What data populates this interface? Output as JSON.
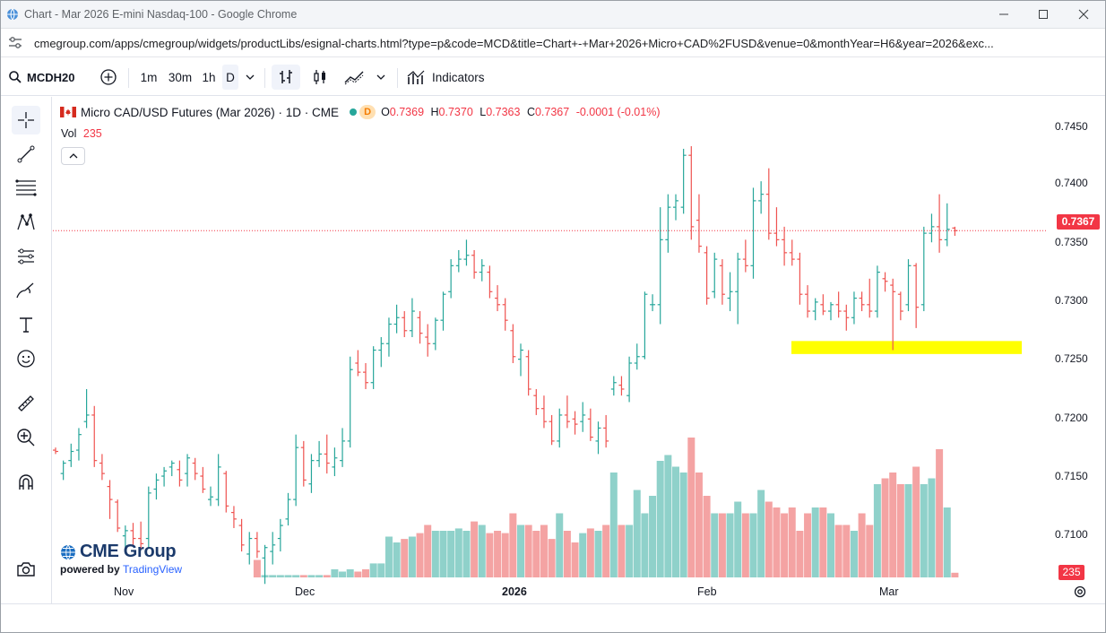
{
  "browser": {
    "title": "Chart - Mar 2026 E-mini Nasdaq-100 - Google Chrome",
    "url": "cmegroup.com/apps/cmegroup/widgets/productLibs/esignal-charts.html?type=p&code=MCD&title=Chart+-+Mar+2026+Micro+CAD%2FUSD&venue=0&monthYear=H6&year=2026&exc..."
  },
  "toolbar": {
    "symbol": "MCDH20",
    "intervals": [
      "1m",
      "30m",
      "1h",
      "D"
    ],
    "active_interval": "D",
    "indicators_label": "Indicators"
  },
  "legend": {
    "instrument": "Micro CAD/USD Futures (Mar 2026) · 1D · CME",
    "market_status": "D",
    "o_label": "O",
    "o_value": "0.7369",
    "h_label": "H",
    "h_value": "0.7370",
    "l_label": "L",
    "l_value": "0.7363",
    "c_label": "C",
    "c_value": "0.7367",
    "change": "-0.0001 (-0.01%)",
    "vol_label": "Vol",
    "vol_value": "235"
  },
  "axis": {
    "price_ticks": [
      "0.7450",
      "0.7400",
      "0.7350",
      "0.7300",
      "0.7250",
      "0.7200",
      "0.7150",
      "0.7100"
    ],
    "last_price_tag": "0.7367",
    "volume_tag": "235",
    "time_labels": [
      "Nov",
      "Dec",
      "2026",
      "Feb",
      "Mar"
    ]
  },
  "branding": {
    "logo_text": "CME Group",
    "powered_prefix": "powered by",
    "powered_brand": "TradingView"
  },
  "colors": {
    "up": "#26a69a",
    "down": "#ef5350",
    "vol_up": "#8fd1ca",
    "vol_down": "#f4a3a3",
    "last_price": "#f23645",
    "highlight_zone": "#ffff00"
  },
  "chart_data": {
    "type": "ohlc",
    "title": "Micro CAD/USD Futures (Mar 2026) · 1D · CME",
    "ylim": [
      0.708,
      0.747
    ],
    "last_price": 0.7367,
    "highlight_zone": {
      "from": 0.7272,
      "to": 0.7282
    },
    "series": [
      {
        "o": 0.7198,
        "h": 0.72,
        "l": 0.7195,
        "c": 0.7197,
        "v": 0
      },
      {
        "o": 0.718,
        "h": 0.719,
        "l": 0.7175,
        "c": 0.7188,
        "v": 0
      },
      {
        "o": 0.719,
        "h": 0.7203,
        "l": 0.7185,
        "c": 0.7197,
        "v": 0
      },
      {
        "o": 0.7198,
        "h": 0.7215,
        "l": 0.719,
        "c": 0.721,
        "v": 0
      },
      {
        "o": 0.722,
        "h": 0.7245,
        "l": 0.7215,
        "c": 0.7225,
        "v": 0
      },
      {
        "o": 0.7225,
        "h": 0.7232,
        "l": 0.7185,
        "c": 0.719,
        "v": 0
      },
      {
        "o": 0.7188,
        "h": 0.7195,
        "l": 0.7175,
        "c": 0.718,
        "v": 0
      },
      {
        "o": 0.717,
        "h": 0.7175,
        "l": 0.7145,
        "c": 0.716,
        "v": 0
      },
      {
        "o": 0.7158,
        "h": 0.716,
        "l": 0.7135,
        "c": 0.7138,
        "v": 0
      },
      {
        "o": 0.7132,
        "h": 0.714,
        "l": 0.712,
        "c": 0.7136,
        "v": 0
      },
      {
        "o": 0.7136,
        "h": 0.7142,
        "l": 0.7125,
        "c": 0.713,
        "v": 0
      },
      {
        "o": 0.713,
        "h": 0.7143,
        "l": 0.7122,
        "c": 0.7126,
        "v": 0
      },
      {
        "o": 0.713,
        "h": 0.717,
        "l": 0.7122,
        "c": 0.7165,
        "v": 0
      },
      {
        "o": 0.7168,
        "h": 0.718,
        "l": 0.716,
        "c": 0.7175,
        "v": 0
      },
      {
        "o": 0.7178,
        "h": 0.7185,
        "l": 0.717,
        "c": 0.7182,
        "v": 0
      },
      {
        "o": 0.7185,
        "h": 0.719,
        "l": 0.7178,
        "c": 0.7188,
        "v": 0
      },
      {
        "o": 0.7183,
        "h": 0.719,
        "l": 0.717,
        "c": 0.7175,
        "v": 0
      },
      {
        "o": 0.718,
        "h": 0.7195,
        "l": 0.717,
        "c": 0.7192,
        "v": 0
      },
      {
        "o": 0.7188,
        "h": 0.7192,
        "l": 0.7175,
        "c": 0.718,
        "v": 0
      },
      {
        "o": 0.7178,
        "h": 0.7185,
        "l": 0.7165,
        "c": 0.7168,
        "v": 0
      },
      {
        "o": 0.716,
        "h": 0.717,
        "l": 0.7155,
        "c": 0.7162,
        "v": 0
      },
      {
        "o": 0.716,
        "h": 0.7195,
        "l": 0.7155,
        "c": 0.7185,
        "v": 0
      },
      {
        "o": 0.718,
        "h": 0.7182,
        "l": 0.715,
        "c": 0.7155,
        "v": 0
      },
      {
        "o": 0.715,
        "h": 0.7155,
        "l": 0.7138,
        "c": 0.7145,
        "v": 0
      },
      {
        "o": 0.714,
        "h": 0.7145,
        "l": 0.712,
        "c": 0.7125,
        "v": 0
      },
      {
        "o": 0.7118,
        "h": 0.7135,
        "l": 0.711,
        "c": 0.713,
        "v": 0
      },
      {
        "o": 0.713,
        "h": 0.7135,
        "l": 0.7115,
        "c": 0.712,
        "v": 0.15
      },
      {
        "o": 0.7115,
        "h": 0.7125,
        "l": 0.7095,
        "c": 0.7123,
        "v": 0.02
      },
      {
        "o": 0.712,
        "h": 0.7135,
        "l": 0.711,
        "c": 0.7125,
        "v": 0.02
      },
      {
        "o": 0.713,
        "h": 0.7145,
        "l": 0.712,
        "c": 0.714,
        "v": 0.02
      },
      {
        "o": 0.7145,
        "h": 0.7165,
        "l": 0.714,
        "c": 0.716,
        "v": 0.02
      },
      {
        "o": 0.716,
        "h": 0.721,
        "l": 0.7155,
        "c": 0.72,
        "v": 0.02
      },
      {
        "o": 0.72,
        "h": 0.7205,
        "l": 0.717,
        "c": 0.7175,
        "v": 0.02
      },
      {
        "o": 0.7172,
        "h": 0.7195,
        "l": 0.7165,
        "c": 0.719,
        "v": 0.02
      },
      {
        "o": 0.719,
        "h": 0.7205,
        "l": 0.7185,
        "c": 0.7195,
        "v": 0.02
      },
      {
        "o": 0.7195,
        "h": 0.721,
        "l": 0.718,
        "c": 0.7188,
        "v": 0.02
      },
      {
        "o": 0.7185,
        "h": 0.72,
        "l": 0.7178,
        "c": 0.7192,
        "v": 0.07
      },
      {
        "o": 0.719,
        "h": 0.7215,
        "l": 0.7185,
        "c": 0.7205,
        "v": 0.05
      },
      {
        "o": 0.7205,
        "h": 0.727,
        "l": 0.72,
        "c": 0.726,
        "v": 0.07
      },
      {
        "o": 0.7265,
        "h": 0.7275,
        "l": 0.7255,
        "c": 0.7258,
        "v": 0.05
      },
      {
        "o": 0.7258,
        "h": 0.7265,
        "l": 0.7245,
        "c": 0.725,
        "v": 0.07
      },
      {
        "o": 0.725,
        "h": 0.7278,
        "l": 0.7245,
        "c": 0.7275,
        "v": 0.12
      },
      {
        "o": 0.7275,
        "h": 0.7285,
        "l": 0.7262,
        "c": 0.728,
        "v": 0.12
      },
      {
        "o": 0.728,
        "h": 0.73,
        "l": 0.727,
        "c": 0.7295,
        "v": 0.35
      },
      {
        "o": 0.7295,
        "h": 0.731,
        "l": 0.7288,
        "c": 0.73,
        "v": 0.3
      },
      {
        "o": 0.73,
        "h": 0.7305,
        "l": 0.7285,
        "c": 0.729,
        "v": 0.33
      },
      {
        "o": 0.729,
        "h": 0.7315,
        "l": 0.7285,
        "c": 0.7305,
        "v": 0.35
      },
      {
        "o": 0.73,
        "h": 0.7305,
        "l": 0.728,
        "c": 0.7288,
        "v": 0.38
      },
      {
        "o": 0.7285,
        "h": 0.7295,
        "l": 0.727,
        "c": 0.728,
        "v": 0.45
      },
      {
        "o": 0.728,
        "h": 0.73,
        "l": 0.7275,
        "c": 0.7298,
        "v": 0.4
      },
      {
        "o": 0.7298,
        "h": 0.732,
        "l": 0.729,
        "c": 0.7318,
        "v": 0.4
      },
      {
        "o": 0.732,
        "h": 0.7345,
        "l": 0.7315,
        "c": 0.734,
        "v": 0.4
      },
      {
        "o": 0.734,
        "h": 0.7352,
        "l": 0.7335,
        "c": 0.7345,
        "v": 0.42
      },
      {
        "o": 0.7345,
        "h": 0.736,
        "l": 0.734,
        "c": 0.7348,
        "v": 0.4
      },
      {
        "o": 0.7348,
        "h": 0.7352,
        "l": 0.733,
        "c": 0.7335,
        "v": 0.48
      },
      {
        "o": 0.7335,
        "h": 0.7345,
        "l": 0.7328,
        "c": 0.734,
        "v": 0.45
      },
      {
        "o": 0.7335,
        "h": 0.734,
        "l": 0.7315,
        "c": 0.732,
        "v": 0.38
      },
      {
        "o": 0.7315,
        "h": 0.7325,
        "l": 0.7305,
        "c": 0.731,
        "v": 0.4
      },
      {
        "o": 0.731,
        "h": 0.7315,
        "l": 0.729,
        "c": 0.7298,
        "v": 0.38
      },
      {
        "o": 0.729,
        "h": 0.7295,
        "l": 0.7265,
        "c": 0.727,
        "v": 0.55
      },
      {
        "o": 0.7268,
        "h": 0.728,
        "l": 0.7255,
        "c": 0.7275,
        "v": 0.45
      },
      {
        "o": 0.727,
        "h": 0.7275,
        "l": 0.724,
        "c": 0.7245,
        "v": 0.45
      },
      {
        "o": 0.724,
        "h": 0.7245,
        "l": 0.7225,
        "c": 0.723,
        "v": 0.4
      },
      {
        "o": 0.723,
        "h": 0.724,
        "l": 0.7215,
        "c": 0.722,
        "v": 0.45
      },
      {
        "o": 0.722,
        "h": 0.7225,
        "l": 0.7202,
        "c": 0.7205,
        "v": 0.33
      },
      {
        "o": 0.7205,
        "h": 0.723,
        "l": 0.72,
        "c": 0.7225,
        "v": 0.55
      },
      {
        "o": 0.7225,
        "h": 0.724,
        "l": 0.7215,
        "c": 0.722,
        "v": 0.4
      },
      {
        "o": 0.7222,
        "h": 0.7228,
        "l": 0.721,
        "c": 0.7218,
        "v": 0.3
      },
      {
        "o": 0.722,
        "h": 0.7235,
        "l": 0.7212,
        "c": 0.7225,
        "v": 0.38
      },
      {
        "o": 0.7222,
        "h": 0.723,
        "l": 0.7205,
        "c": 0.7208,
        "v": 0.42
      },
      {
        "o": 0.7205,
        "h": 0.722,
        "l": 0.7195,
        "c": 0.7215,
        "v": 0.4
      },
      {
        "o": 0.7215,
        "h": 0.7225,
        "l": 0.72,
        "c": 0.7205,
        "v": 0.45
      },
      {
        "o": 0.7245,
        "h": 0.7255,
        "l": 0.724,
        "c": 0.725,
        "v": 0.9
      },
      {
        "o": 0.7248,
        "h": 0.7255,
        "l": 0.724,
        "c": 0.7245,
        "v": 0.45
      },
      {
        "o": 0.724,
        "h": 0.727,
        "l": 0.7235,
        "c": 0.7265,
        "v": 0.45
      },
      {
        "o": 0.7265,
        "h": 0.728,
        "l": 0.726,
        "c": 0.727,
        "v": 0.75
      },
      {
        "o": 0.727,
        "h": 0.732,
        "l": 0.7268,
        "c": 0.7318,
        "v": 0.55
      },
      {
        "o": 0.731,
        "h": 0.7318,
        "l": 0.7305,
        "c": 0.731,
        "v": 0.7
      },
      {
        "o": 0.731,
        "h": 0.7385,
        "l": 0.7295,
        "c": 0.736,
        "v": 1.0
      },
      {
        "o": 0.736,
        "h": 0.7395,
        "l": 0.735,
        "c": 0.7385,
        "v": 1.05
      },
      {
        "o": 0.7385,
        "h": 0.7395,
        "l": 0.7375,
        "c": 0.739,
        "v": 0.95
      },
      {
        "o": 0.7385,
        "h": 0.743,
        "l": 0.738,
        "c": 0.7425,
        "v": 0.9
      },
      {
        "o": 0.7425,
        "h": 0.7432,
        "l": 0.736,
        "c": 0.737,
        "v": 1.2
      },
      {
        "o": 0.7375,
        "h": 0.7395,
        "l": 0.735,
        "c": 0.7355,
        "v": 0.9
      },
      {
        "o": 0.735,
        "h": 0.7355,
        "l": 0.731,
        "c": 0.7315,
        "v": 0.7
      },
      {
        "o": 0.732,
        "h": 0.735,
        "l": 0.7315,
        "c": 0.7345,
        "v": 0.55
      },
      {
        "o": 0.734,
        "h": 0.7345,
        "l": 0.731,
        "c": 0.7318,
        "v": 0.55
      },
      {
        "o": 0.7315,
        "h": 0.7335,
        "l": 0.7305,
        "c": 0.732,
        "v": 0.55
      },
      {
        "o": 0.732,
        "h": 0.735,
        "l": 0.7295,
        "c": 0.7345,
        "v": 0.65
      },
      {
        "o": 0.7345,
        "h": 0.736,
        "l": 0.7335,
        "c": 0.734,
        "v": 0.55
      },
      {
        "o": 0.734,
        "h": 0.74,
        "l": 0.733,
        "c": 0.739,
        "v": 0.55
      },
      {
        "o": 0.739,
        "h": 0.7405,
        "l": 0.738,
        "c": 0.7395,
        "v": 0.75
      },
      {
        "o": 0.7395,
        "h": 0.7415,
        "l": 0.736,
        "c": 0.7365,
        "v": 0.65
      },
      {
        "o": 0.7365,
        "h": 0.7385,
        "l": 0.7355,
        "c": 0.736,
        "v": 0.6
      },
      {
        "o": 0.736,
        "h": 0.737,
        "l": 0.734,
        "c": 0.735,
        "v": 0.55
      },
      {
        "o": 0.735,
        "h": 0.736,
        "l": 0.734,
        "c": 0.7345,
        "v": 0.6
      },
      {
        "o": 0.7345,
        "h": 0.735,
        "l": 0.731,
        "c": 0.7318,
        "v": 0.4
      },
      {
        "o": 0.7318,
        "h": 0.7325,
        "l": 0.73,
        "c": 0.7305,
        "v": 0.55
      },
      {
        "o": 0.7305,
        "h": 0.7315,
        "l": 0.7298,
        "c": 0.7312,
        "v": 0.6
      },
      {
        "o": 0.731,
        "h": 0.7318,
        "l": 0.7302,
        "c": 0.7305,
        "v": 0.6
      },
      {
        "o": 0.7305,
        "h": 0.7312,
        "l": 0.7298,
        "c": 0.731,
        "v": 0.55
      },
      {
        "o": 0.731,
        "h": 0.732,
        "l": 0.73,
        "c": 0.7305,
        "v": 0.45
      },
      {
        "o": 0.7305,
        "h": 0.731,
        "l": 0.729,
        "c": 0.73,
        "v": 0.45
      },
      {
        "o": 0.73,
        "h": 0.732,
        "l": 0.7295,
        "c": 0.7315,
        "v": 0.4
      },
      {
        "o": 0.7315,
        "h": 0.732,
        "l": 0.7305,
        "c": 0.731,
        "v": 0.55
      },
      {
        "o": 0.731,
        "h": 0.733,
        "l": 0.73,
        "c": 0.7305,
        "v": 0.45
      },
      {
        "o": 0.7305,
        "h": 0.734,
        "l": 0.73,
        "c": 0.7335,
        "v": 0.8
      },
      {
        "o": 0.733,
        "h": 0.7335,
        "l": 0.732,
        "c": 0.7328,
        "v": 0.85
      },
      {
        "o": 0.7325,
        "h": 0.733,
        "l": 0.7275,
        "c": 0.732,
        "v": 0.9
      },
      {
        "o": 0.7318,
        "h": 0.732,
        "l": 0.7298,
        "c": 0.7305,
        "v": 0.8
      },
      {
        "o": 0.731,
        "h": 0.7345,
        "l": 0.7305,
        "c": 0.734,
        "v": 0.8
      },
      {
        "o": 0.734,
        "h": 0.7342,
        "l": 0.7292,
        "c": 0.7308,
        "v": 0.95
      },
      {
        "o": 0.731,
        "h": 0.737,
        "l": 0.7305,
        "c": 0.7365,
        "v": 0.8
      },
      {
        "o": 0.7365,
        "h": 0.738,
        "l": 0.7358,
        "c": 0.737,
        "v": 0.85
      },
      {
        "o": 0.737,
        "h": 0.7395,
        "l": 0.735,
        "c": 0.736,
        "v": 1.1
      },
      {
        "o": 0.736,
        "h": 0.7388,
        "l": 0.7355,
        "c": 0.7368,
        "v": 0.6
      },
      {
        "o": 0.7369,
        "h": 0.737,
        "l": 0.7363,
        "c": 0.7367,
        "v": 0.04
      }
    ]
  }
}
